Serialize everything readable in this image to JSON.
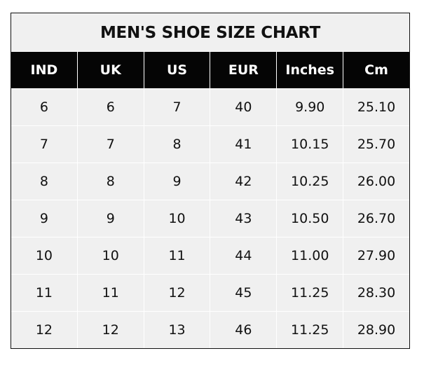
{
  "chart_data": {
    "type": "table",
    "title": "MEN'S SHOE SIZE CHART",
    "columns": [
      "IND",
      "UK",
      "US",
      "EUR",
      "Inches",
      "Cm"
    ],
    "rows": [
      [
        "6",
        "6",
        "7",
        "40",
        "9.90",
        "25.10"
      ],
      [
        "7",
        "7",
        "8",
        "41",
        "10.15",
        "25.70"
      ],
      [
        "8",
        "8",
        "9",
        "42",
        "10.25",
        "26.00"
      ],
      [
        "9",
        "9",
        "10",
        "43",
        "10.50",
        "26.70"
      ],
      [
        "10",
        "10",
        "11",
        "44",
        "11.00",
        "27.90"
      ],
      [
        "11",
        "11",
        "12",
        "45",
        "11.25",
        "28.30"
      ],
      [
        "12",
        "12",
        "13",
        "46",
        "11.25",
        "28.90"
      ]
    ],
    "colors": {
      "header_bg": "#050505",
      "header_text": "#ffffff",
      "cell_bg": "#f0f0f0",
      "grid": "#ffffff"
    }
  }
}
